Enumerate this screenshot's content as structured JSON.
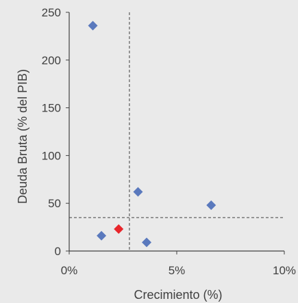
{
  "chart_data": {
    "type": "scatter",
    "title": "",
    "xlabel": "Crecimiento (%)",
    "ylabel": "Deuda Bruta (% del PIB)",
    "xlim": [
      0,
      0.1
    ],
    "ylim": [
      0,
      250
    ],
    "x_ticks": [
      0,
      0.05,
      0.1
    ],
    "x_tick_labels": [
      "0%",
      "5%",
      "10%"
    ],
    "y_ticks": [
      0,
      50,
      100,
      150,
      200,
      250
    ],
    "y_tick_labels": [
      "0",
      "50",
      "100",
      "150",
      "200",
      "250"
    ],
    "grid": false,
    "reference_lines": {
      "vertical_x": 0.028,
      "horizontal_y": 35,
      "style": "dashed"
    },
    "series": [
      {
        "marker": "diamond",
        "color": "#5a79bd",
        "points": [
          {
            "x": 0.011,
            "y": 236
          },
          {
            "x": 0.032,
            "y": 62
          },
          {
            "x": 0.066,
            "y": 48
          },
          {
            "x": 0.015,
            "y": 16
          },
          {
            "x": 0.036,
            "y": 9
          }
        ]
      },
      {
        "marker": "diamond",
        "color": "#e8262b",
        "points": [
          {
            "x": 0.023,
            "y": 23
          }
        ]
      }
    ]
  },
  "colors": {
    "background": "#eaeaea",
    "axis": "#404040",
    "reference_line": "#404040"
  }
}
